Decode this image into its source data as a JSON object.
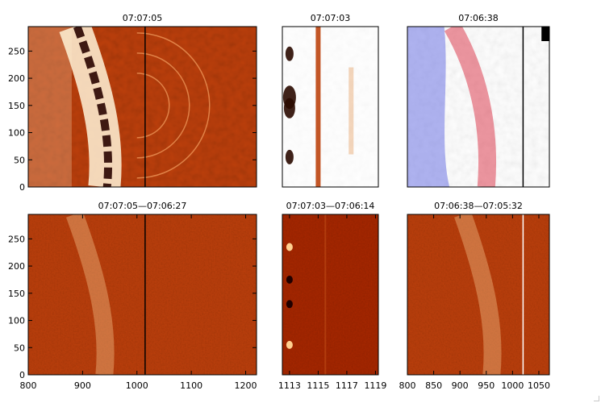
{
  "figure": {
    "background": "#ffffff",
    "axis_color": "#000000",
    "text_color": "#000000"
  },
  "chart_data": [
    {
      "type": "heatmap",
      "title": "07:07:05",
      "x_ticks": [],
      "xlim": [
        800,
        1220
      ],
      "y_ticks": [
        0,
        50,
        100,
        150,
        200,
        250
      ],
      "ylim": [
        0,
        295
      ],
      "colormap": "red-temperature",
      "content": "bright curved filament crossing the field, arc-like loops on its right side",
      "vertical_line_x": 1015,
      "vertical_line_color": "#000000"
    },
    {
      "type": "heatmap",
      "title": "07:07:03",
      "x_ticks": [],
      "xlim": [
        1112.5,
        1119.2
      ],
      "y_ticks": [],
      "ylim": [
        0,
        295
      ],
      "colormap": "orange-on-white",
      "content": "narrow vertical bands, strongest at 1115 with dark blobs at 1113"
    },
    {
      "type": "heatmap",
      "title": "07:06:38",
      "x_ticks": [],
      "xlim": [
        800,
        1070
      ],
      "y_ticks": [],
      "ylim": [
        0,
        295
      ],
      "colormap": "blue-white-red",
      "content": "blue-shifted region on the left, red-shifted band curving through the middle",
      "vertical_line_x": 1020,
      "vertical_line_color": "#000000"
    },
    {
      "type": "heatmap",
      "title": "07:07:05—07:06:27",
      "x_ticks": [
        800,
        900,
        1000,
        1100,
        1200
      ],
      "xlim": [
        800,
        1220
      ],
      "y_ticks": [
        0,
        50,
        100,
        150,
        200,
        250
      ],
      "ylim": [
        0,
        295
      ],
      "colormap": "red-temperature",
      "content": "noise-like running difference with speckled filament near x≈930",
      "vertical_line_x": 1015,
      "vertical_line_color": "#000000"
    },
    {
      "type": "heatmap",
      "title": "07:07:03—07:06:14",
      "x_ticks": [
        1113,
        1115,
        1117,
        1119
      ],
      "xlim": [
        1112.5,
        1119.2
      ],
      "y_ticks": [],
      "ylim": [
        0,
        295
      ],
      "colormap": "dark-red",
      "content": "flat dark-red difference image with a few bright and dark blobs at 1113"
    },
    {
      "type": "heatmap",
      "title": "07:06:38—07:05:32",
      "x_ticks": [
        800,
        850,
        900,
        950,
        1000,
        1050
      ],
      "xlim": [
        800,
        1070
      ],
      "y_ticks": [],
      "ylim": [
        0,
        295
      ],
      "colormap": "red-temperature",
      "content": "noisy difference image with a bright curved band near x≈950",
      "vertical_line_x": 1020,
      "vertical_line_color": "#ffffff"
    }
  ]
}
